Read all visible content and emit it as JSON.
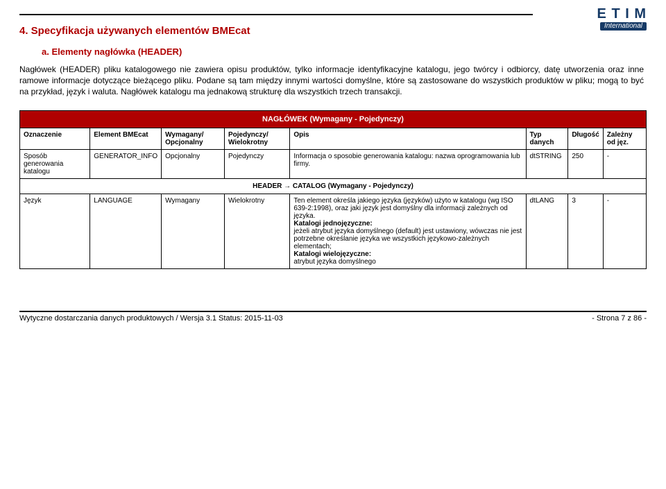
{
  "logo": {
    "top": "E T I M",
    "bottom": "International"
  },
  "section": {
    "title": "4. Specyfikacja używanych elementów BMEcat",
    "sub": "a. Elementy nagłówka (HEADER)",
    "para1": "Nagłówek (HEADER) pliku katalogowego nie zawiera opisu produktów, tylko informacje identyfikacyjne katalogu, jego twórcy i odbiorcy, datę utworzenia oraz inne ramowe informacje dotyczące bieżącego pliku. Podane są tam między innymi wartości domyślne, które są zastosowane do wszystkich produktów w pliku; mogą to być na przykład, język i waluta. Nagłówek katalogu ma jednakową strukturę dla wszystkich trzech transakcji."
  },
  "table": {
    "headerRow": "NAGŁÓWEK (Wymagany - Pojedynczy)",
    "cols": {
      "oznaczenie": "Oznaczenie",
      "element": "Element BMEcat",
      "wymagany": "Wymagany/ Opcjonalny",
      "pojedynczy": "Pojedynczy/ Wielokrotny",
      "opis": "Opis",
      "typ": "Typ danych",
      "dlugosc": "Długość",
      "zalezny": "Zależny od jęz."
    },
    "row1": {
      "oznaczenie": "Sposób generowania katalogu",
      "element": "GENERATOR_INFO",
      "wymagany": "Opcjonalny",
      "pojedynczy": "Pojedynczy",
      "opis": "Informacja o sposobie generowania katalogu: nazwa oprogramowania lub firmy.",
      "typ": "dtSTRING",
      "dlugosc": "250",
      "zalezny": "-"
    },
    "subSection": "HEADER → CATALOG (Wymagany  - Pojedynczy)",
    "row2": {
      "oznaczenie": "Język",
      "element": "LANGUAGE",
      "wymagany": "Wymagany",
      "pojedynczy": "Wielokrotny",
      "opis": "Ten element określa jakiego języka (języków) użyto w katalogu (wg ISO 639-2:1998), oraz jaki język jest domyślny dla informacji zależnych od języka.\nKatalogi jednojęzyczne:\njeżeli atrybut języka domyślnego (default) jest ustawiony, wówczas nie jest potrzebne określanie języka we wszystkich językowo-zależnych elementach;\nKatalogi wielojęzyczne:\natrybut języka domyślnego",
      "typ": "dtLANG",
      "dlugosc": "3",
      "zalezny": "-"
    }
  },
  "footer": {
    "left": "Wytyczne dostarczania danych produktowych / Wersja 3.1 Status: 2015-11-03",
    "right": "- Strona 7 z 86 -"
  }
}
